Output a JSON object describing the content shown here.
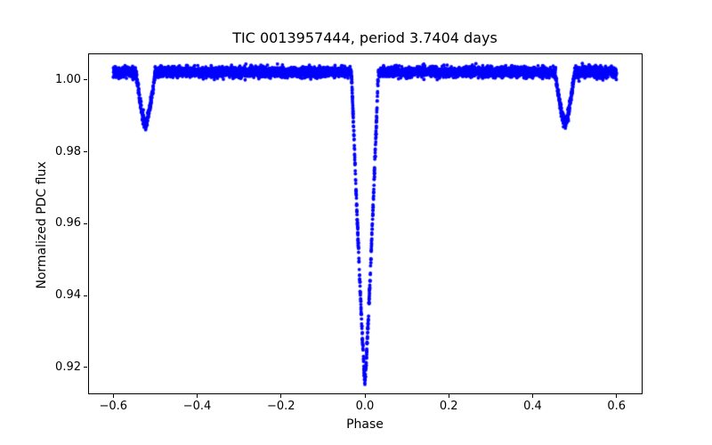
{
  "chart_data": {
    "type": "scatter",
    "title": "TIC 0013957444, period 3.7404 days",
    "xlabel": "Phase",
    "ylabel": "Normalized PDC flux",
    "marker_color": "#0000ff",
    "marker_radius_px": 1.9,
    "text_color": "#000000",
    "axes_color": "#000000",
    "background_color": "#ffffff",
    "grid": false,
    "legend": null,
    "xlim": [
      -0.66,
      0.66
    ],
    "ylim": [
      0.9128,
      1.0074
    ],
    "xticks": [
      -0.6,
      -0.4,
      -0.2,
      0.0,
      0.2,
      0.4,
      0.6
    ],
    "xtick_labels": [
      "−0.6",
      "−0.4",
      "−0.2",
      "0.0",
      "0.2",
      "0.4",
      "0.6"
    ],
    "yticks": [
      0.92,
      0.94,
      0.96,
      0.98,
      1.0
    ],
    "ytick_labels": [
      "0.92",
      "0.94",
      "0.96",
      "0.98",
      "1.00"
    ],
    "phase_range": [
      -0.6,
      0.6
    ],
    "n_points": 6000,
    "seed": 12345,
    "baseline_flux": 1.0022,
    "noise_sigma": 0.0007,
    "eclipses": [
      {
        "name": "primary-eclipse",
        "center": 0.0,
        "half_width": 0.032,
        "depth": 0.0865,
        "shape_exp": 1.15
      },
      {
        "name": "secondary-eclipse",
        "center": 0.477,
        "half_width": 0.023,
        "depth": 0.0146,
        "shape_exp": 1.4
      },
      {
        "name": "secondary-eclipse-alias",
        "center": -0.523,
        "half_width": 0.023,
        "depth": 0.0146,
        "shape_exp": 1.4
      }
    ],
    "min_flux_primary": 0.9155,
    "min_flux_secondary": 0.9876
  }
}
